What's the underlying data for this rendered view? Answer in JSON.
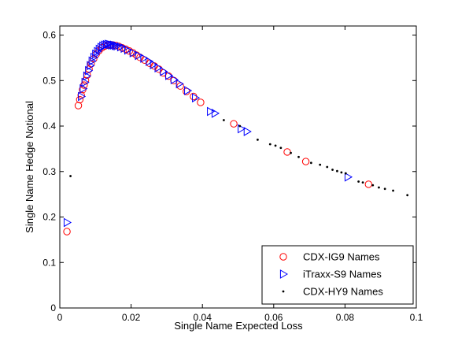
{
  "chart_data": {
    "type": "scatter",
    "xlabel": "Single Name Expected Loss",
    "ylabel": "Single Name Hedge Notional",
    "xlim": [
      0,
      0.1
    ],
    "ylim": [
      0,
      0.62
    ],
    "xticks": [
      "0",
      "0.02",
      "0.04",
      "0.06",
      "0.08",
      "0.1"
    ],
    "yticks": [
      "0",
      "0.1",
      "0.2",
      "0.3",
      "0.4",
      "0.5",
      "0.6"
    ],
    "grid": false,
    "legend_position": "bottom-right",
    "series": [
      {
        "name": "CDX-IG9 Names",
        "marker": "circle-open",
        "color": "#ff0000",
        "x": [
          0.002,
          0.0052,
          0.0056,
          0.006,
          0.0064,
          0.0068,
          0.0072,
          0.0077,
          0.0082,
          0.0088,
          0.0095,
          0.0102,
          0.011,
          0.0118,
          0.0126,
          0.0134,
          0.0142,
          0.015,
          0.0158,
          0.0166,
          0.0175,
          0.0185,
          0.0195,
          0.0205,
          0.0215,
          0.0225,
          0.0238,
          0.0252,
          0.0265,
          0.0278,
          0.029,
          0.0305,
          0.032,
          0.0338,
          0.0355,
          0.0375,
          0.0395,
          0.0488,
          0.0638,
          0.069,
          0.0866
        ],
        "y": [
          0.168,
          0.445,
          0.458,
          0.468,
          0.48,
          0.49,
          0.5,
          0.512,
          0.525,
          0.537,
          0.548,
          0.558,
          0.566,
          0.572,
          0.576,
          0.578,
          0.579,
          0.578,
          0.577,
          0.575,
          0.572,
          0.569,
          0.565,
          0.561,
          0.556,
          0.551,
          0.545,
          0.538,
          0.532,
          0.525,
          0.517,
          0.51,
          0.5,
          0.488,
          0.476,
          0.465,
          0.452,
          0.405,
          0.343,
          0.322,
          0.272
        ]
      },
      {
        "name": "iTraxx-S9 Names",
        "marker": "triangle-right-open",
        "color": "#0000ff",
        "x": [
          0.002,
          0.006,
          0.0065,
          0.007,
          0.0075,
          0.008,
          0.0085,
          0.009,
          0.0095,
          0.01,
          0.0105,
          0.011,
          0.0115,
          0.012,
          0.0125,
          0.013,
          0.0135,
          0.014,
          0.0145,
          0.015,
          0.0155,
          0.016,
          0.017,
          0.018,
          0.019,
          0.0205,
          0.022,
          0.0235,
          0.025,
          0.0262,
          0.0275,
          0.029,
          0.0305,
          0.032,
          0.0335,
          0.0358,
          0.038,
          0.0422,
          0.0435,
          0.0508,
          0.0525,
          0.0808
        ],
        "y": [
          0.188,
          0.465,
          0.482,
          0.496,
          0.51,
          0.522,
          0.533,
          0.543,
          0.551,
          0.558,
          0.564,
          0.569,
          0.573,
          0.576,
          0.578,
          0.579,
          0.58,
          0.579,
          0.578,
          0.578,
          0.577,
          0.576,
          0.574,
          0.571,
          0.567,
          0.561,
          0.555,
          0.549,
          0.542,
          0.535,
          0.528,
          0.52,
          0.511,
          0.502,
          0.493,
          0.478,
          0.462,
          0.432,
          0.428,
          0.394,
          0.388,
          0.288
        ]
      },
      {
        "name": "CDX-HY9 Names",
        "marker": "dot",
        "color": "#000000",
        "x": [
          0.003,
          0.046,
          0.0505,
          0.0555,
          0.059,
          0.0605,
          0.062,
          0.0648,
          0.067,
          0.0705,
          0.073,
          0.075,
          0.0765,
          0.0778,
          0.079,
          0.0802,
          0.0838,
          0.085,
          0.0878,
          0.0895,
          0.0912,
          0.0935,
          0.0975
        ],
        "y": [
          0.29,
          0.413,
          0.4,
          0.37,
          0.36,
          0.357,
          0.352,
          0.341,
          0.332,
          0.319,
          0.315,
          0.31,
          0.304,
          0.301,
          0.298,
          0.296,
          0.278,
          0.276,
          0.27,
          0.265,
          0.262,
          0.258,
          0.248
        ]
      }
    ]
  }
}
